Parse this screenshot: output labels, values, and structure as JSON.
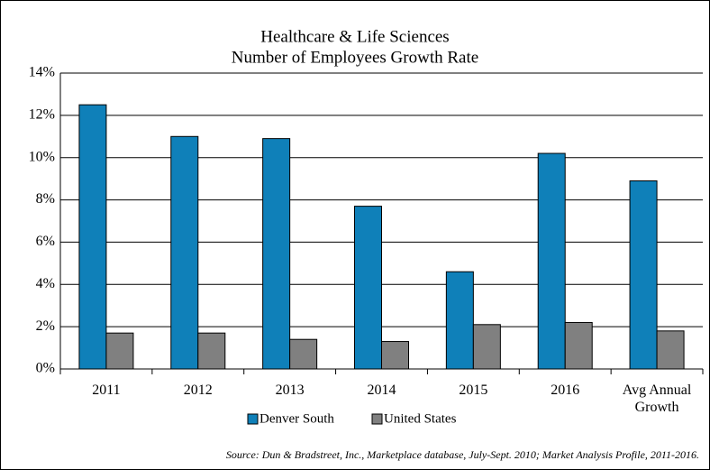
{
  "chart_data": {
    "type": "bar",
    "title": "Healthcare & Life Sciences",
    "subtitle": "Number of Employees Growth Rate",
    "categories": [
      "2011",
      "2012",
      "2013",
      "2014",
      "2015",
      "2016",
      "Avg Annual Growth"
    ],
    "series": [
      {
        "name": "Denver South",
        "color": "#0f80b9",
        "values": [
          12.5,
          11.0,
          10.9,
          7.7,
          4.6,
          10.2,
          8.9
        ]
      },
      {
        "name": "United States",
        "color": "#808080",
        "values": [
          1.7,
          1.7,
          1.4,
          1.3,
          2.1,
          2.2,
          1.8
        ]
      }
    ],
    "ylim": [
      0,
      14
    ],
    "yticks": [
      {
        "value": 0,
        "label": "0%"
      },
      {
        "value": 2,
        "label": "2%"
      },
      {
        "value": 4,
        "label": "4%"
      },
      {
        "value": 6,
        "label": "6%"
      },
      {
        "value": 8,
        "label": "8%"
      },
      {
        "value": 10,
        "label": "10%"
      },
      {
        "value": 12,
        "label": "12%"
      },
      {
        "value": 14,
        "label": "14%"
      }
    ],
    "grid": true,
    "legend": "bottom",
    "source": "Source: Dun & Bradstreet, Inc., Marketplace database, July-Sept. 2010; Market Analysis Profile, 2011-2016."
  }
}
